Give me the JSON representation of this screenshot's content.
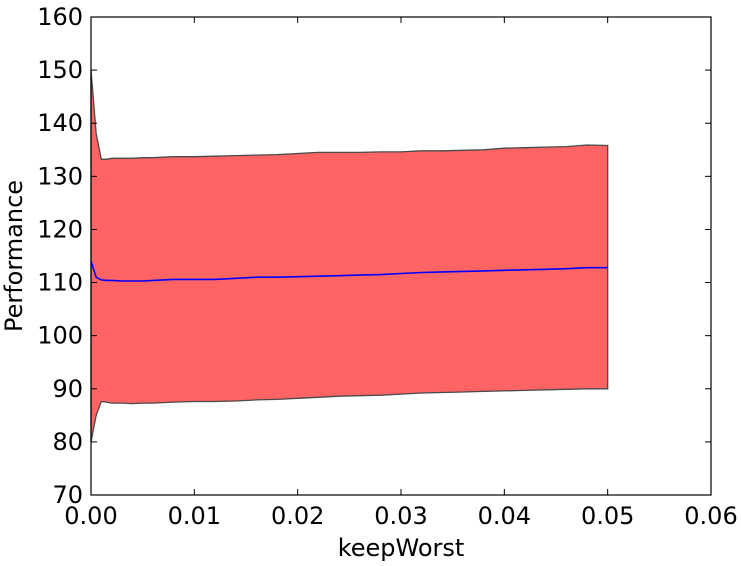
{
  "chart_data": {
    "type": "area",
    "title": "",
    "xlabel": "keepWorst",
    "ylabel": "Performance",
    "xlim": [
      0.0,
      0.06
    ],
    "ylim": [
      70,
      160
    ],
    "grid": false,
    "legend": "none",
    "x_ticks": [
      "0.00",
      "0.01",
      "0.02",
      "0.03",
      "0.04",
      "0.05",
      "0.06"
    ],
    "y_ticks": [
      "70",
      "80",
      "90",
      "100",
      "110",
      "120",
      "130",
      "140",
      "150",
      "160"
    ],
    "x_tick_values": [
      0.0,
      0.01,
      0.02,
      0.03,
      0.04,
      0.05,
      0.06
    ],
    "y_tick_values": [
      70,
      80,
      90,
      100,
      110,
      120,
      130,
      140,
      150,
      160
    ],
    "colors": {
      "band_fill": "#ff6464",
      "band_edge": "#4a4a4a",
      "mean_line": "#0000ff",
      "axes": "#000000"
    },
    "x": [
      0.0,
      0.0005,
      0.001,
      0.0015,
      0.002,
      0.003,
      0.004,
      0.005,
      0.006,
      0.007,
      0.008,
      0.01,
      0.012,
      0.014,
      0.016,
      0.018,
      0.02,
      0.022,
      0.024,
      0.026,
      0.028,
      0.03,
      0.032,
      0.034,
      0.036,
      0.038,
      0.04,
      0.042,
      0.044,
      0.046,
      0.048,
      0.05
    ],
    "series": [
      {
        "role": "upper",
        "values": [
          150,
          138,
          133.2,
          133.2,
          133.4,
          133.4,
          133.4,
          133.5,
          133.5,
          133.6,
          133.7,
          133.7,
          133.8,
          133.9,
          134.0,
          134.1,
          134.3,
          134.5,
          134.5,
          134.5,
          134.6,
          134.6,
          134.8,
          134.8,
          134.9,
          135.0,
          135.3,
          135.4,
          135.5,
          135.6,
          135.9,
          135.8
        ]
      },
      {
        "role": "mean",
        "values": [
          114.0,
          111.0,
          110.5,
          110.4,
          110.4,
          110.3,
          110.3,
          110.3,
          110.4,
          110.5,
          110.6,
          110.6,
          110.6,
          110.8,
          111.0,
          111.0,
          111.1,
          111.2,
          111.3,
          111.4,
          111.5,
          111.7,
          111.9,
          112.0,
          112.1,
          112.2,
          112.3,
          112.4,
          112.5,
          112.6,
          112.8,
          112.8
        ]
      },
      {
        "role": "lower",
        "values": [
          80,
          85.0,
          87.6,
          87.5,
          87.3,
          87.3,
          87.2,
          87.3,
          87.3,
          87.4,
          87.5,
          87.6,
          87.6,
          87.7,
          87.9,
          88.0,
          88.2,
          88.4,
          88.6,
          88.7,
          88.8,
          89.0,
          89.2,
          89.3,
          89.4,
          89.5,
          89.6,
          89.7,
          89.8,
          89.9,
          90.0,
          90.0
        ]
      }
    ]
  }
}
